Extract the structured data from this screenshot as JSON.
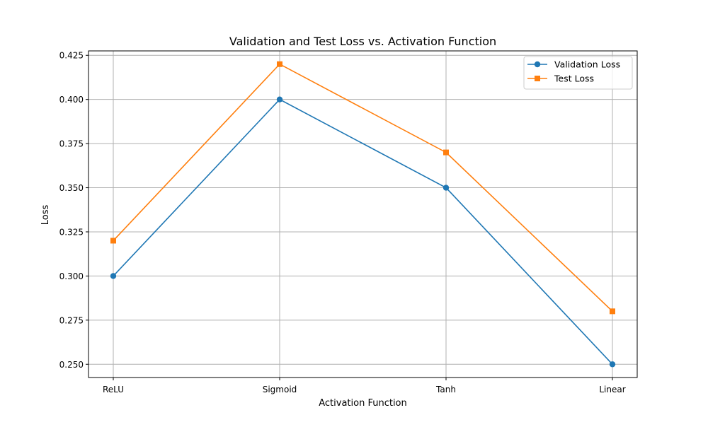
{
  "chart_data": {
    "type": "line",
    "title": "Validation and Test Loss vs. Activation Function",
    "xlabel": "Activation Function",
    "ylabel": "Loss",
    "categories": [
      "ReLU",
      "Sigmoid",
      "Tanh",
      "Linear"
    ],
    "ylim": [
      0.2425,
      0.4275
    ],
    "yticks": [
      0.25,
      0.275,
      0.3,
      0.325,
      0.35,
      0.375,
      0.4,
      0.425
    ],
    "ytick_labels": [
      "0.250",
      "0.275",
      "0.300",
      "0.325",
      "0.350",
      "0.375",
      "0.400",
      "0.425"
    ],
    "grid": true,
    "legend_position": "upper right",
    "series": [
      {
        "name": "Validation Loss",
        "values": [
          0.3,
          0.4,
          0.35,
          0.25
        ],
        "color": "#1f77b4",
        "marker": "circle"
      },
      {
        "name": "Test Loss",
        "values": [
          0.32,
          0.42,
          0.37,
          0.28
        ],
        "color": "#ff7f0e",
        "marker": "square"
      }
    ]
  }
}
